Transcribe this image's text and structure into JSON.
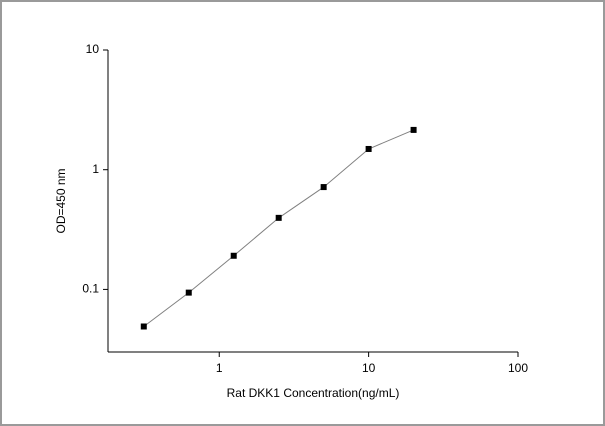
{
  "chart_data": {
    "type": "line",
    "x_label": "Rat DKK1 Concentration(ng/mL)",
    "y_label": "OD=450 nm",
    "x": [
      0.3125,
      0.625,
      1.25,
      2.5,
      5,
      10,
      20
    ],
    "values": [
      0.049,
      0.094,
      0.191,
      0.396,
      0.716,
      1.49,
      2.15
    ],
    "color": "#000000",
    "line_color": "#808080",
    "xlim": [
      0.18,
      100
    ],
    "xticks": [
      1,
      10,
      100
    ],
    "ylim": [
      0.03,
      10
    ],
    "yticks": [
      0.1,
      1,
      10
    ],
    "log_x": true,
    "log_y": true
  }
}
